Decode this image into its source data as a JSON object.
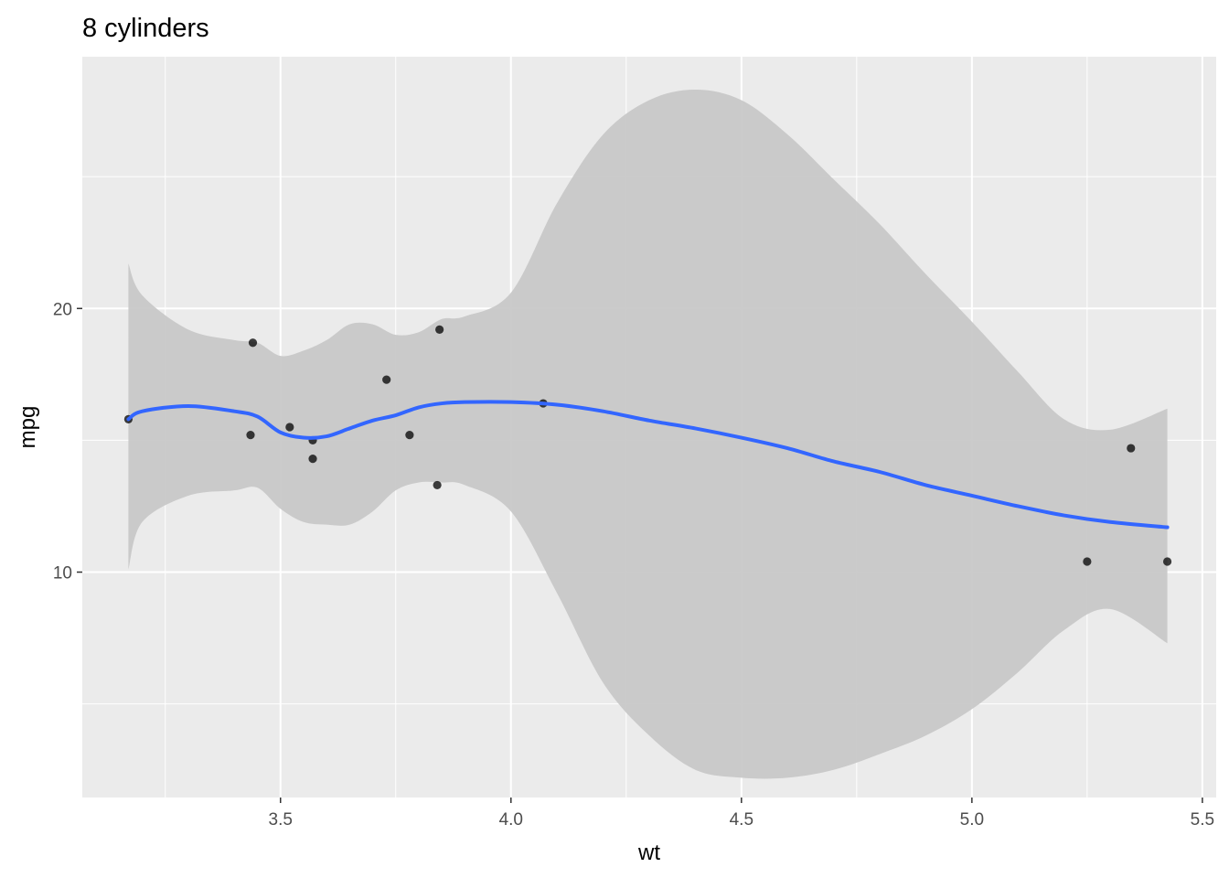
{
  "chart_data": {
    "type": "scatter",
    "title": "8 cylinders",
    "xlabel": "wt",
    "ylabel": "mpg",
    "xlim": [
      3.07,
      5.53
    ],
    "ylim": [
      1.45,
      29.55
    ],
    "x_ticks": [
      3.5,
      4.0,
      4.5,
      5.0,
      5.5
    ],
    "x_tick_labels": [
      "3.5",
      "4.0",
      "4.5",
      "5.0",
      "5.5"
    ],
    "y_ticks": [
      10,
      20
    ],
    "y_tick_labels": [
      "10",
      "20"
    ],
    "grid": true,
    "points": [
      {
        "x": 3.17,
        "y": 15.8
      },
      {
        "x": 3.435,
        "y": 15.2
      },
      {
        "x": 3.44,
        "y": 18.7
      },
      {
        "x": 3.52,
        "y": 15.5
      },
      {
        "x": 3.57,
        "y": 15.0
      },
      {
        "x": 3.57,
        "y": 14.3
      },
      {
        "x": 3.73,
        "y": 17.3
      },
      {
        "x": 3.78,
        "y": 15.2
      },
      {
        "x": 3.84,
        "y": 13.3
      },
      {
        "x": 3.845,
        "y": 19.2
      },
      {
        "x": 4.07,
        "y": 16.4
      },
      {
        "x": 5.25,
        "y": 10.4
      },
      {
        "x": 5.345,
        "y": 14.7
      },
      {
        "x": 5.424,
        "y": 10.4
      }
    ],
    "smooth": {
      "color": "#3366ff",
      "band_color": "#c8c8c8",
      "x": [
        3.17,
        3.2,
        3.3,
        3.4,
        3.45,
        3.5,
        3.55,
        3.6,
        3.65,
        3.7,
        3.75,
        3.8,
        3.85,
        3.9,
        4.0,
        4.1,
        4.2,
        4.3,
        4.4,
        4.5,
        4.6,
        4.7,
        4.8,
        4.9,
        5.0,
        5.1,
        5.2,
        5.3,
        5.424
      ],
      "y": [
        15.8,
        16.1,
        16.3,
        16.1,
        15.9,
        15.3,
        15.1,
        15.15,
        15.45,
        15.75,
        15.95,
        16.25,
        16.4,
        16.45,
        16.45,
        16.35,
        16.1,
        15.75,
        15.45,
        15.1,
        14.7,
        14.2,
        13.8,
        13.3,
        12.9,
        12.5,
        12.15,
        11.9,
        11.7
      ],
      "upper": [
        21.7,
        20.5,
        19.2,
        18.8,
        18.7,
        18.2,
        18.4,
        18.8,
        19.4,
        19.4,
        19.0,
        19.1,
        19.6,
        19.7,
        20.6,
        24.0,
        26.6,
        27.9,
        28.3,
        27.9,
        26.6,
        24.9,
        23.2,
        21.3,
        19.5,
        17.6,
        15.8,
        15.4,
        16.2
      ],
      "lower": [
        10.1,
        11.9,
        12.9,
        13.1,
        13.2,
        12.4,
        11.9,
        11.8,
        11.8,
        12.3,
        13.1,
        13.4,
        13.4,
        13.3,
        12.3,
        9.2,
        5.8,
        3.8,
        2.5,
        2.2,
        2.2,
        2.5,
        3.1,
        3.8,
        4.8,
        6.2,
        7.8,
        8.6,
        7.3
      ]
    }
  }
}
